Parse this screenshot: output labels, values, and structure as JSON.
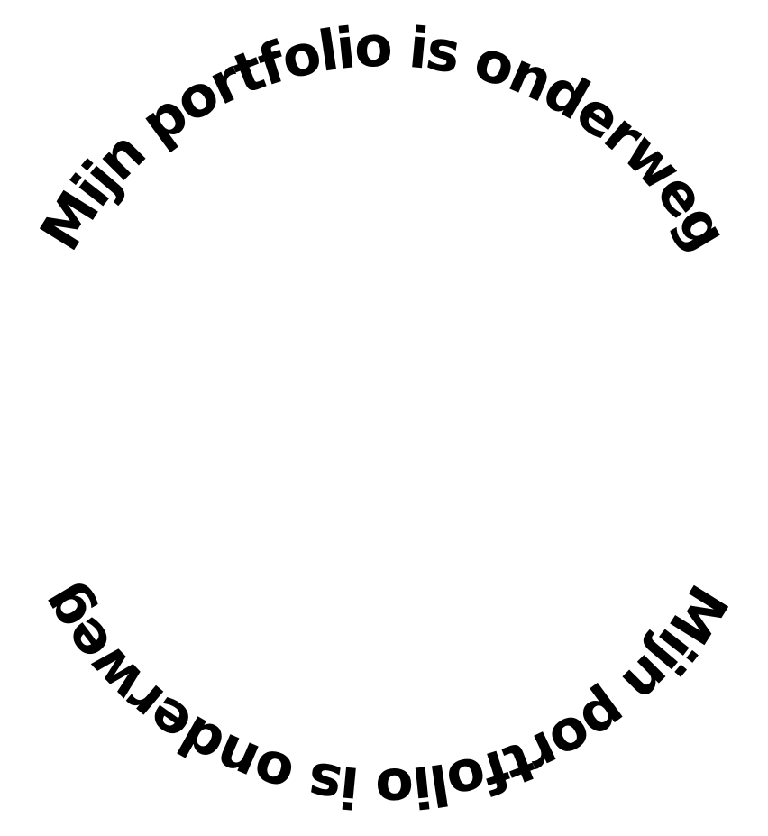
{
  "ring_texts": [
    "Mijn portfolio is onderweg",
    "Mijn portfolio is onderweg"
  ]
}
